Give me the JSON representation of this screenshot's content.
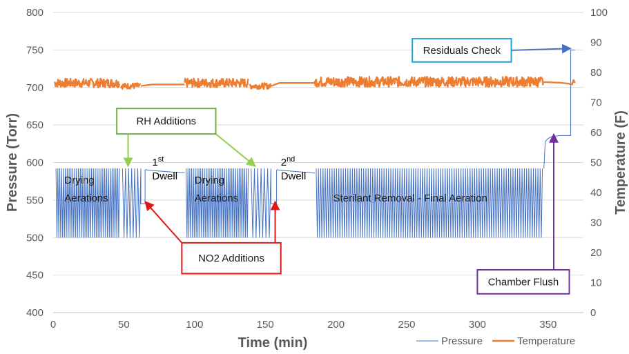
{
  "chart_data": {
    "type": "line",
    "title": "",
    "xlabel": "Time (min)",
    "ylabel": "Pressure (Torr)",
    "y2label": "Temperature (F)",
    "xlim": [
      0,
      375
    ],
    "ylim": [
      400,
      800
    ],
    "y2lim": [
      0,
      100
    ],
    "x_ticks": [
      "0",
      "50",
      "100",
      "150",
      "200",
      "250",
      "300",
      "350"
    ],
    "y_ticks": [
      "400",
      "450",
      "500",
      "550",
      "600",
      "650",
      "700",
      "750",
      "800"
    ],
    "y2_ticks": [
      "0",
      "10",
      "20",
      "30",
      "40",
      "50",
      "60",
      "70",
      "80",
      "90",
      "100"
    ],
    "grid": "horizontal",
    "legend_position": "bottom-right",
    "series_colors": {
      "pressure": "#4472C4",
      "temperature": "#ED7D31"
    },
    "series": [
      {
        "name": "Pressure",
        "axis": "left",
        "segments": [
          {
            "type": "oscillation",
            "x_start": 2,
            "x_end": 47,
            "low": 500,
            "high": 592,
            "cycles": 34
          },
          {
            "type": "oscillation",
            "x_start": 49,
            "x_end": 62,
            "low": 500,
            "high": 592,
            "cycles": 6
          },
          {
            "type": "points",
            "x": [
              62,
              62,
              65,
              65,
              66,
              66
            ],
            "y": [
              590,
              545,
              545,
              590,
              591,
              591
            ]
          },
          {
            "type": "points",
            "x": [
              66,
              93
            ],
            "y": [
              590,
              586
            ]
          },
          {
            "type": "oscillation",
            "x_start": 94,
            "x_end": 138,
            "low": 500,
            "high": 592,
            "cycles": 34
          },
          {
            "type": "oscillation",
            "x_start": 140,
            "x_end": 154,
            "low": 500,
            "high": 592,
            "cycles": 6
          },
          {
            "type": "points",
            "x": [
              154,
              154,
              158,
              158,
              159
            ],
            "y": [
              590,
              545,
              545,
              590,
              591
            ]
          },
          {
            "type": "points",
            "x": [
              159,
              185
            ],
            "y": [
              590,
              586
            ]
          },
          {
            "type": "oscillation",
            "x_start": 186,
            "x_end": 346,
            "low": 500,
            "high": 592,
            "cycles": 100
          },
          {
            "type": "points",
            "x": [
              347,
              348,
              350,
              352,
              355,
              358,
              362,
              366,
              366,
              368,
              369
            ],
            "y": [
              592,
              628,
              632,
              634,
              635,
              636,
              636,
              636,
              750,
              750,
              750
            ]
          }
        ]
      },
      {
        "name": "Temperature",
        "axis": "right",
        "segments": [
          {
            "type": "noise",
            "x_start": 1,
            "x_end": 47,
            "low": 75,
            "high": 78
          },
          {
            "type": "noise",
            "x_start": 48,
            "x_end": 62,
            "low": 74.5,
            "high": 76.5
          },
          {
            "type": "points",
            "x": [
              62,
              70,
              93
            ],
            "y": [
              75.5,
              76.0,
              76.0
            ]
          },
          {
            "type": "noise",
            "x_start": 93,
            "x_end": 138,
            "low": 75,
            "high": 78
          },
          {
            "type": "noise",
            "x_start": 139,
            "x_end": 154,
            "low": 74.5,
            "high": 76.5
          },
          {
            "type": "points",
            "x": [
              154,
              160,
              185
            ],
            "y": [
              75.5,
              76.5,
              76.5
            ]
          },
          {
            "type": "noise",
            "x_start": 185,
            "x_end": 347,
            "low": 75.2,
            "high": 78.6
          },
          {
            "type": "points",
            "x": [
              347,
              358,
              364,
              367,
              368,
              369
            ],
            "y": [
              76.8,
              76.6,
              76.3,
              76.0,
              77.5,
              76.5
            ]
          }
        ]
      }
    ],
    "region_labels": [
      {
        "text": "Drying",
        "x": 8,
        "y": 572
      },
      {
        "text": "Aerations",
        "x": 8,
        "y": 548
      },
      {
        "text": "Drying",
        "x": 100,
        "y": 572
      },
      {
        "text": "Aerations",
        "x": 100,
        "y": 548
      },
      {
        "text": "Sterilant Removal - Final Aeration",
        "x": 198,
        "y": 548
      }
    ],
    "dwell_labels": [
      {
        "ordinal": "1",
        "suffix": "st",
        "word": "Dwell",
        "x": 70,
        "y": 596
      },
      {
        "ordinal": "2",
        "suffix": "nd",
        "word": "Dwell",
        "x": 161,
        "y": 596
      }
    ],
    "annotations": [
      {
        "text": "RH Additions",
        "border_color": "#70AD47",
        "arrow_color": "#92D050",
        "box": {
          "x1": 45,
          "x2": 115,
          "y1": 672,
          "y2": 638
        },
        "targets": [
          {
            "x": 53,
            "y": 595
          },
          {
            "x": 143,
            "y": 595
          }
        ]
      },
      {
        "text": "NO2 Additions",
        "border_color": "#E01818",
        "arrow_color": "#E01818",
        "box": {
          "x1": 91,
          "x2": 161,
          "y1": 493,
          "y2": 452
        },
        "targets": [
          {
            "x": 65,
            "y": 548
          },
          {
            "x": 157,
            "y": 548
          }
        ]
      },
      {
        "text": "Residuals Check",
        "border_color": "#1CA3D9",
        "arrow_color": "#4472C4",
        "box": {
          "x1": 254,
          "x2": 324,
          "y1": 765,
          "y2": 734
        },
        "targets": [
          {
            "x": 366,
            "y": 752
          }
        ]
      },
      {
        "text": "Chamber Flush",
        "border_color": "#7030A0",
        "arrow_color": "#7030A0",
        "box": {
          "x1": 300,
          "x2": 365,
          "y1": 457,
          "y2": 425
        },
        "targets": [
          {
            "x": 354,
            "y": 638
          }
        ]
      }
    ]
  }
}
